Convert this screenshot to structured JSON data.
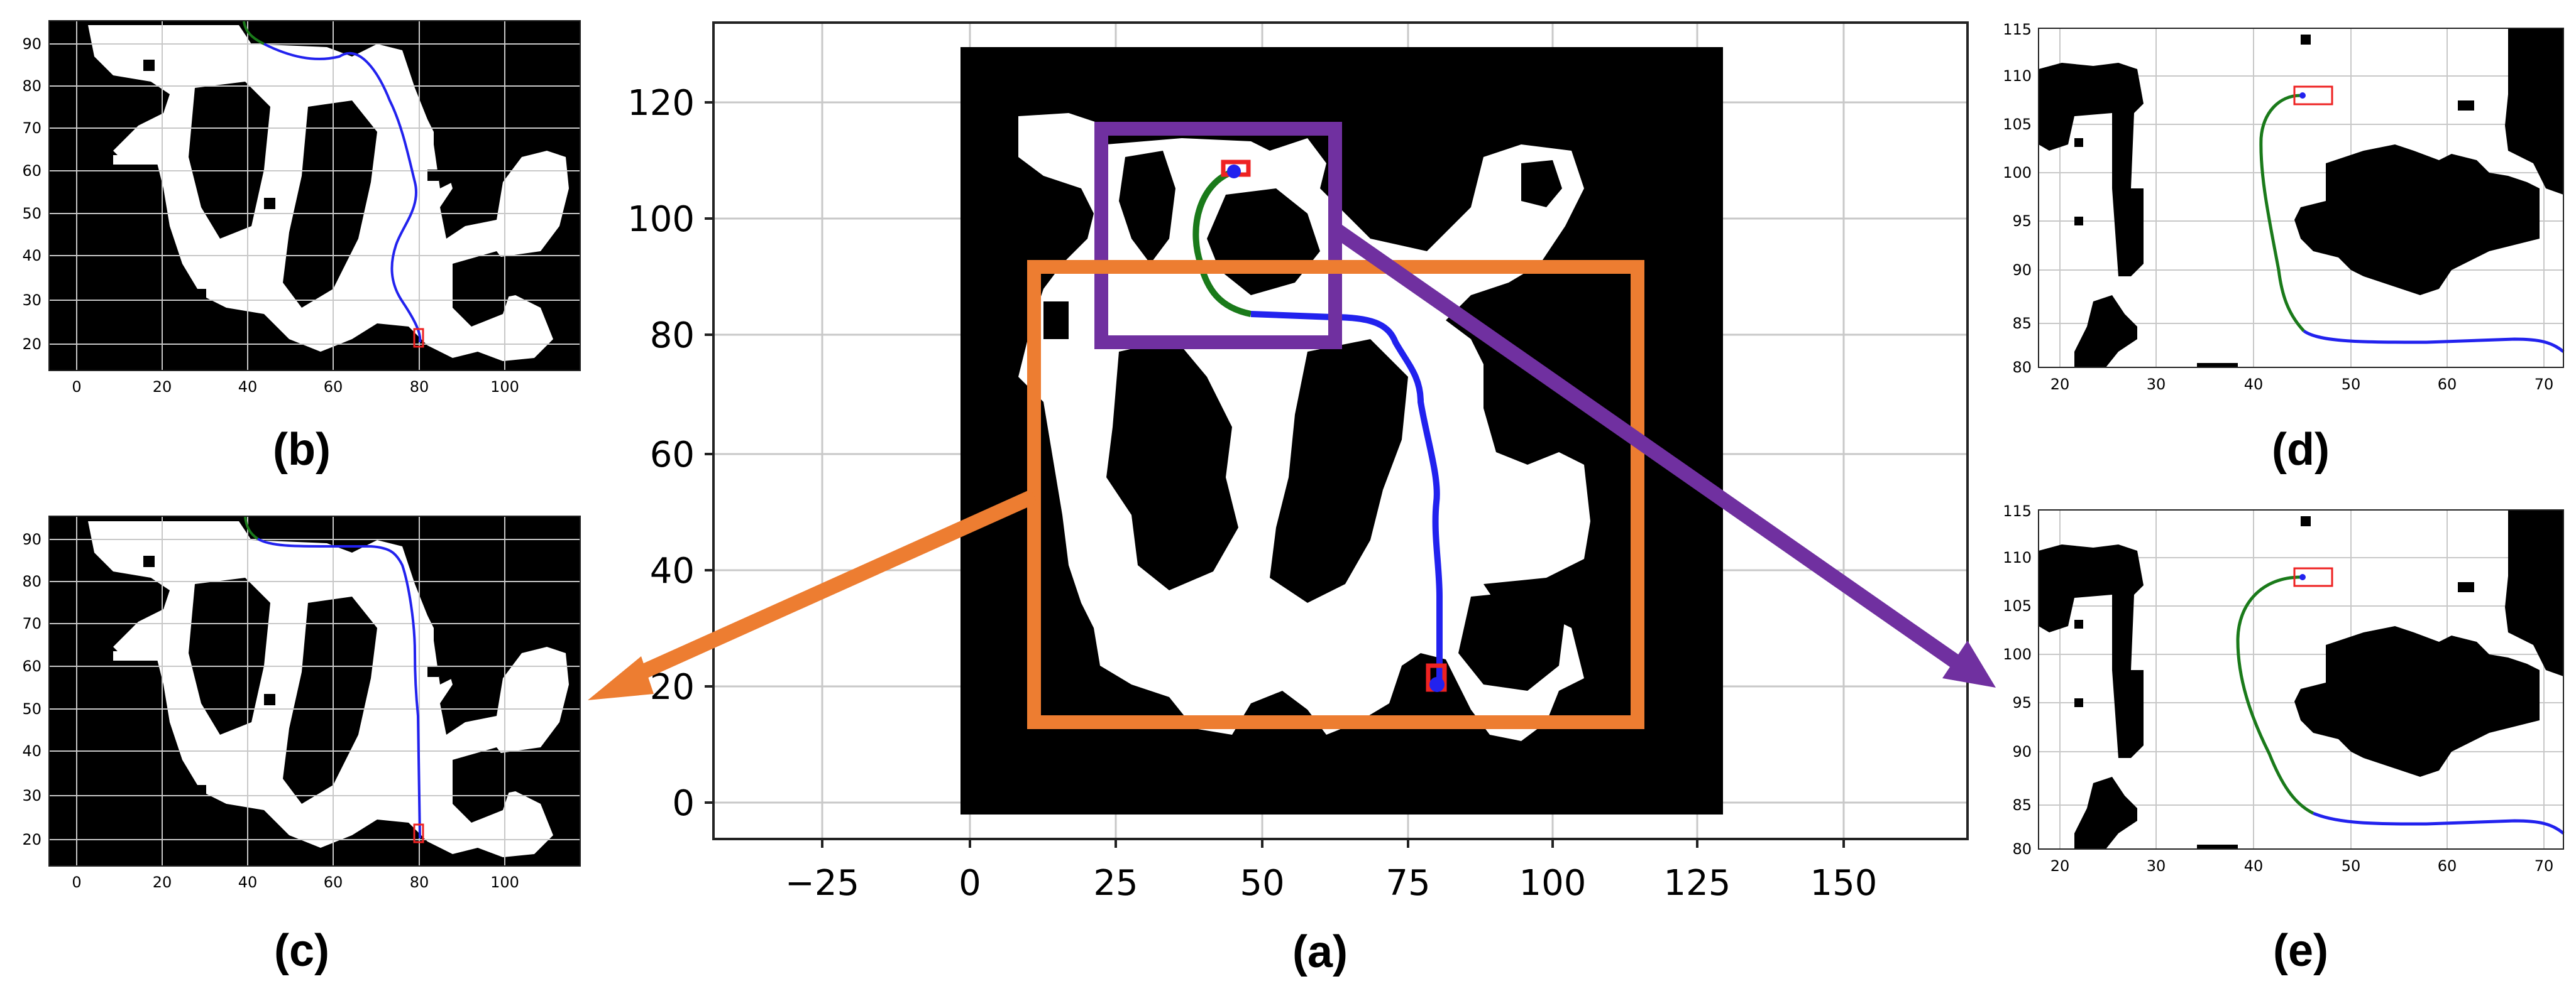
{
  "panels": [
    {
      "id": "a",
      "label": "(a)",
      "xticks": [
        "−25",
        "0",
        "25",
        "50",
        "75",
        "100",
        "125",
        "150"
      ],
      "yticks": [
        "0",
        "20",
        "40",
        "60",
        "80",
        "100",
        "120"
      ]
    },
    {
      "id": "b",
      "label": "(b)",
      "xticks": [
        "0",
        "20",
        "40",
        "60",
        "80",
        "100"
      ],
      "yticks": [
        "20",
        "30",
        "40",
        "50",
        "60",
        "70",
        "80",
        "90"
      ]
    },
    {
      "id": "c",
      "label": "(c)",
      "xticks": [
        "0",
        "20",
        "40",
        "60",
        "80",
        "100"
      ],
      "yticks": [
        "20",
        "30",
        "40",
        "50",
        "60",
        "70",
        "80",
        "90"
      ]
    },
    {
      "id": "d",
      "label": "(d)",
      "xticks": [
        "20",
        "30",
        "40",
        "50",
        "60",
        "70"
      ],
      "yticks": [
        "80",
        "85",
        "90",
        "95",
        "100",
        "105",
        "110",
        "115"
      ]
    },
    {
      "id": "e",
      "label": "(e)",
      "xticks": [
        "20",
        "30",
        "40",
        "50",
        "60",
        "70"
      ],
      "yticks": [
        "80",
        "85",
        "90",
        "95",
        "100",
        "105",
        "110",
        "115"
      ]
    }
  ],
  "colors": {
    "path_start": "#1a7a1a",
    "path_main": "#2222ee",
    "marker": "#ee2222",
    "zoom_orange": "#ed7d31",
    "zoom_purple": "#7030a0",
    "grid": "#c8c8c8",
    "obstacle": "#000000",
    "free": "#ffffff"
  }
}
